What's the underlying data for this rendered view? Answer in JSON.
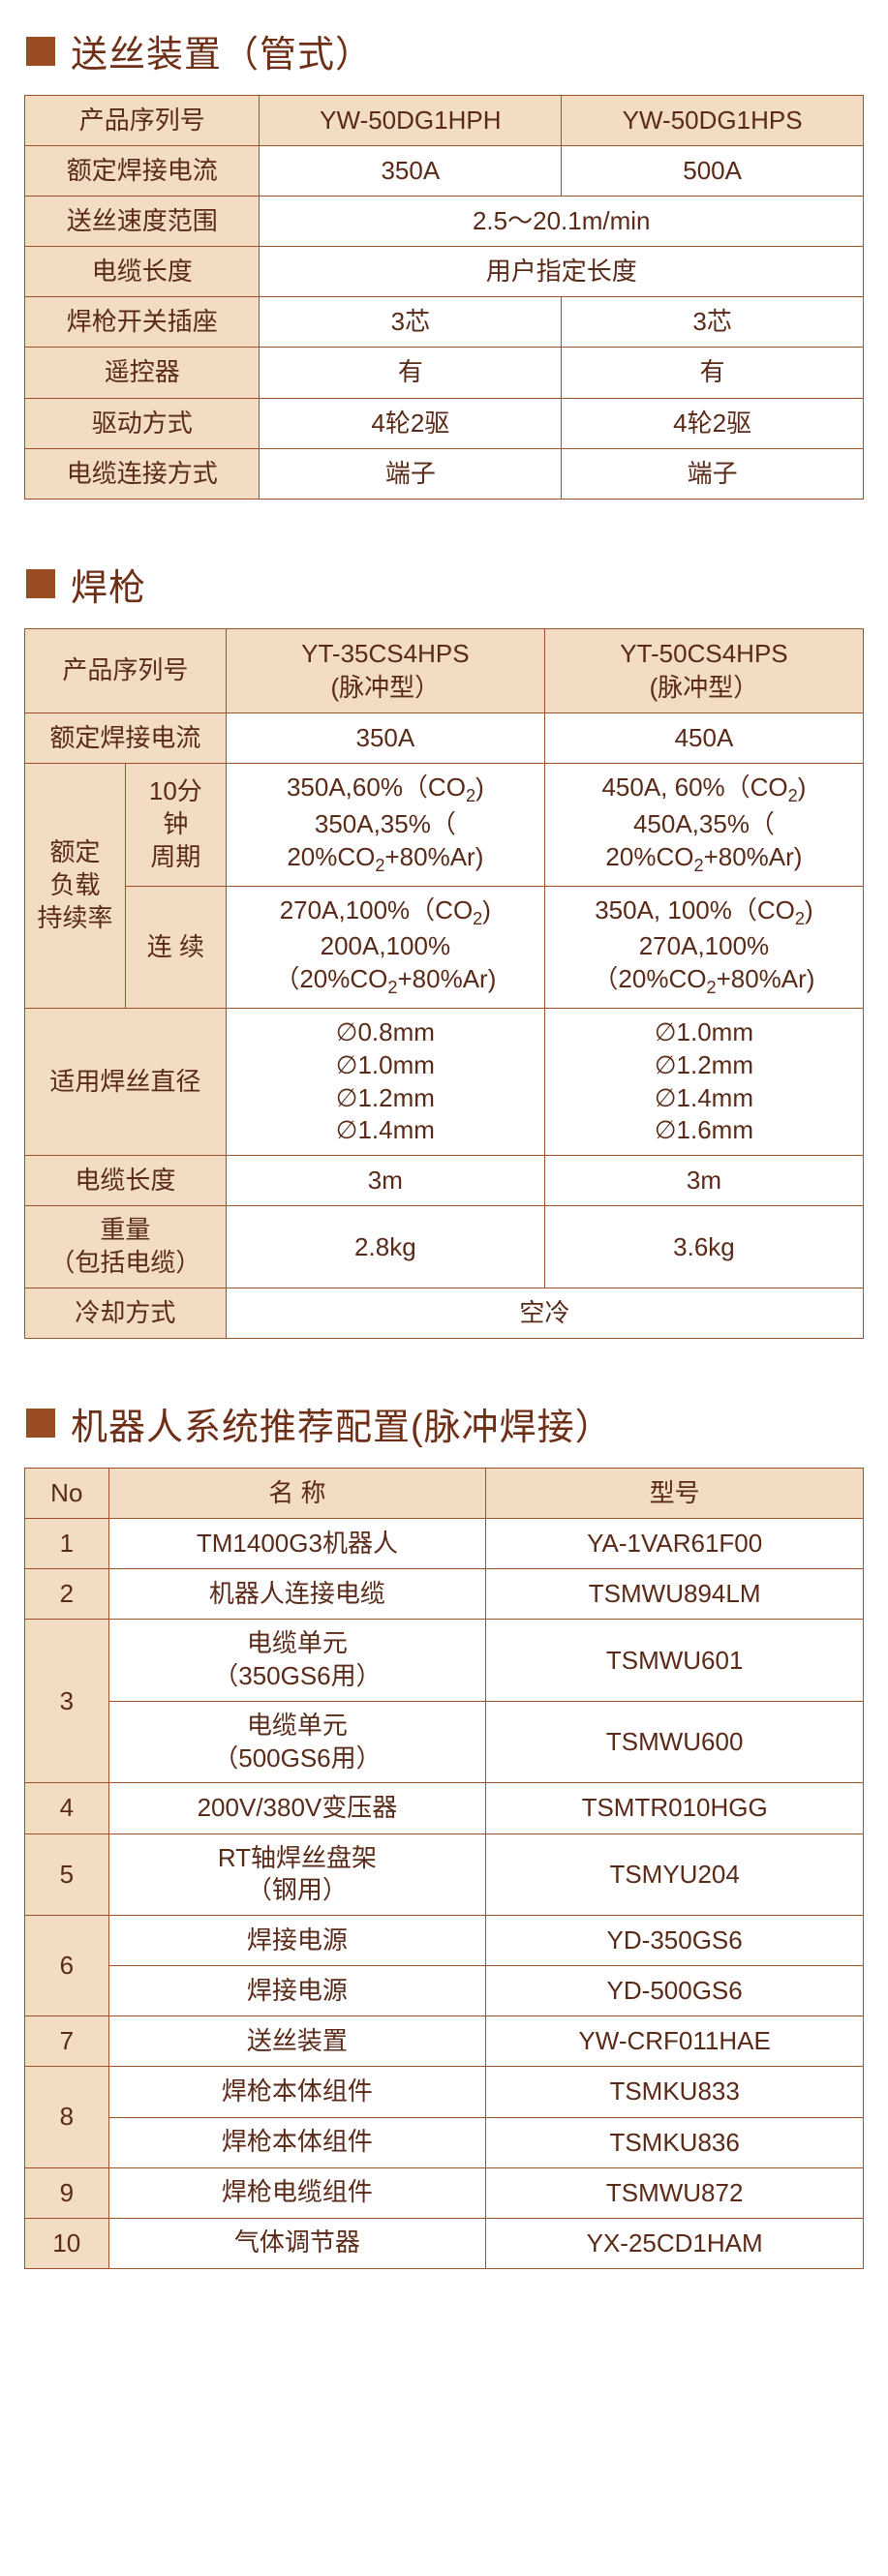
{
  "colors": {
    "border": "#a0502a",
    "header_bg": "#f2dcc3",
    "text": "#5a2a18",
    "title": "#6f2f17",
    "bullet": "#9a4c22",
    "row_bg": "#ffffff"
  },
  "section1": {
    "title": "送丝装置（管式）",
    "headers": [
      "产品序列号",
      "YW-50DG1HPH",
      "YW-50DG1HPS"
    ],
    "rows": [
      {
        "label": "额定焊接电流",
        "c1": "350A",
        "c2": "500A"
      },
      {
        "label": "送丝速度范围",
        "merged": "2.5～20.1m/min"
      },
      {
        "label": "电缆长度",
        "merged": "用户指定长度"
      },
      {
        "label": "焊枪开关插座",
        "c1": "3芯",
        "c2": "3芯"
      },
      {
        "label": "遥控器",
        "c1": "有",
        "c2": "有"
      },
      {
        "label": "驱动方式",
        "c1": "4轮2驱",
        "c2": "4轮2驱"
      },
      {
        "label": "电缆连接方式",
        "c1": "端子",
        "c2": "端子"
      }
    ]
  },
  "section2": {
    "title": "焊枪",
    "col_head": "产品序列号",
    "col1": "YT-35CS4HPS",
    "col1_sub": "(脉冲型）",
    "col2": "YT-50CS4HPS",
    "col2_sub": "(脉冲型）",
    "r_current_label": "额定焊接电流",
    "r_current_c1": "350A",
    "r_current_c2": "450A",
    "duty_label": "额定\n负载\n持续率",
    "duty_10_label": "10分\n钟\n周期",
    "duty_10_c1": "350A,60%（CO₂)\n350A,35%（\n20%CO₂+80%Ar)",
    "duty_10_c2": "450A, 60%（CO₂)\n450A,35%（\n20%CO₂+80%Ar)",
    "duty_cont_label": "连  续",
    "duty_cont_c1": "270A,100%（CO₂)\n200A,100%\n（20%CO₂+80%Ar)",
    "duty_cont_c2": "350A, 100%（CO₂)\n270A,100%\n（20%CO₂+80%Ar)",
    "wire_label": "适用焊丝直径",
    "wire_c1": "∅0.8mm\n∅1.0mm\n∅1.2mm\n∅1.4mm",
    "wire_c2": "∅1.0mm\n∅1.2mm\n∅1.4mm\n∅1.6mm",
    "cable_label": "电缆长度",
    "cable_c1": "3m",
    "cable_c2": "3m",
    "weight_label": "重量\n（包括电缆）",
    "weight_c1": "2.8kg",
    "weight_c2": "3.6kg",
    "cool_label": "冷却方式",
    "cool_merged": "空冷"
  },
  "section3": {
    "title": "机器人系统推荐配置(脉冲焊接）",
    "headers": [
      "No",
      "名    称",
      "型号"
    ],
    "rows": [
      {
        "no": "1",
        "name": "TM1400G3机器人",
        "model": "YA-1VAR61F00"
      },
      {
        "no": "2",
        "name": "机器人连接电缆",
        "model": "TSMWU894LM"
      },
      {
        "no": "3",
        "rowspan": 2,
        "name": "电缆单元\n（350GS6用）",
        "model": "TSMWU601"
      },
      {
        "name": "电缆单元\n（500GS6用）",
        "model": "TSMWU600"
      },
      {
        "no": "4",
        "name": "200V/380V变压器",
        "model": "TSMTR010HGG"
      },
      {
        "no": "5",
        "name": "RT轴焊丝盘架\n（钢用）",
        "model": "TSMYU204"
      },
      {
        "no": "6",
        "rowspan": 2,
        "name": "焊接电源",
        "model": "YD-350GS6"
      },
      {
        "name": "焊接电源",
        "model": "YD-500GS6"
      },
      {
        "no": "7",
        "name": "送丝装置",
        "model": "YW-CRF011HAE"
      },
      {
        "no": "8",
        "rowspan": 2,
        "name": "焊枪本体组件",
        "model": "TSMKU833"
      },
      {
        "name": "焊枪本体组件",
        "model": "TSMKU836"
      },
      {
        "no": "9",
        "name": "焊枪电缆组件",
        "model": "TSMWU872"
      },
      {
        "no": "10",
        "name": "气体调节器",
        "model": "YX-25CD1HAM"
      }
    ]
  }
}
